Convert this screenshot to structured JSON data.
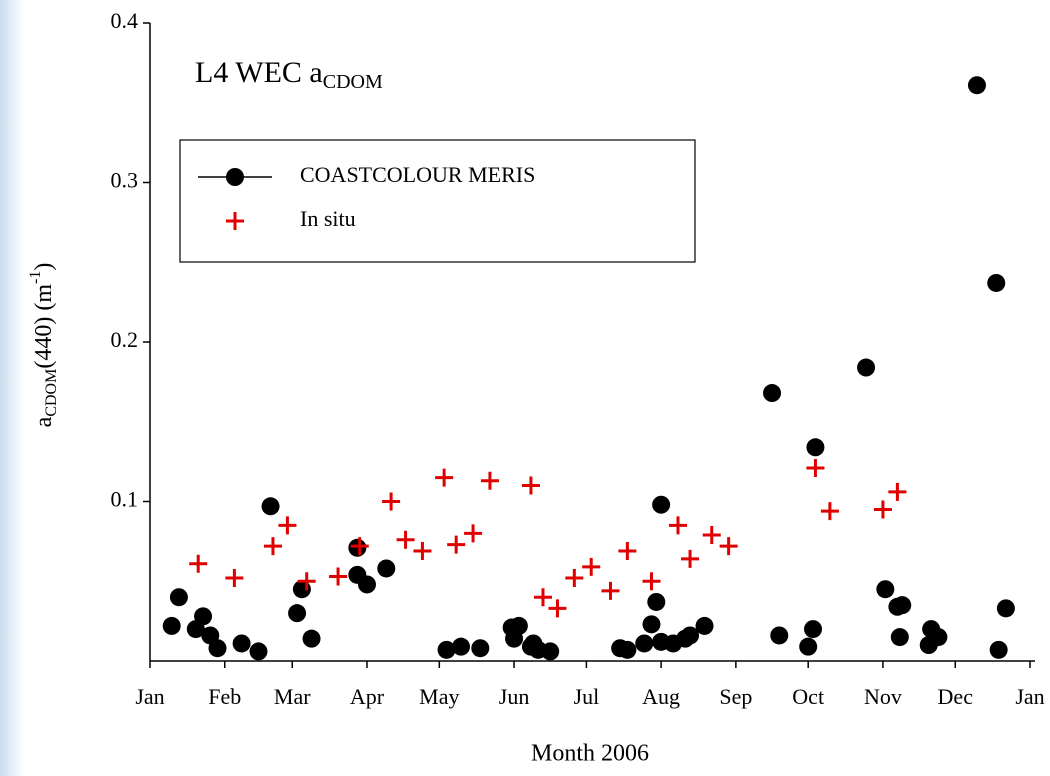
{
  "chart_data": {
    "type": "scatter",
    "title": [
      "L4 WEC a",
      "CDOM"
    ],
    "x_label": "Month 2006",
    "y_label": [
      "a",
      "CDOM",
      "(440) (m",
      "-1",
      ")"
    ],
    "xlim": [
      0,
      365
    ],
    "xticks": [
      {
        "value": 0,
        "label": "Jan"
      },
      {
        "value": 31,
        "label": "Feb"
      },
      {
        "value": 59,
        "label": "Mar"
      },
      {
        "value": 90,
        "label": "Apr"
      },
      {
        "value": 120,
        "label": "May"
      },
      {
        "value": 151,
        "label": "Jun"
      },
      {
        "value": 181,
        "label": "Jul"
      },
      {
        "value": 212,
        "label": "Aug"
      },
      {
        "value": 243,
        "label": "Sep"
      },
      {
        "value": 273,
        "label": "Oct"
      },
      {
        "value": 304,
        "label": "Nov"
      },
      {
        "value": 334,
        "label": "Dec"
      },
      {
        "value": 365,
        "label": "Jan"
      }
    ],
    "ylim": [
      0,
      0.4
    ],
    "yticks": [
      0.1,
      0.2,
      0.3,
      0.4
    ],
    "legend": "upper left",
    "series": [
      {
        "name": "COASTCOLOUR MERIS",
        "marker": "circle",
        "color": "#000000",
        "x": [
          9,
          12,
          19,
          22,
          25,
          28,
          38,
          45,
          50,
          61,
          63,
          67,
          86,
          86,
          90,
          98,
          123,
          129,
          137,
          150,
          153,
          151,
          158,
          159,
          161,
          166,
          195,
          198,
          205,
          208,
          210,
          212,
          212,
          217,
          222,
          224,
          230,
          258,
          261,
          273,
          275,
          276,
          297,
          305,
          310,
          312,
          311,
          323,
          324,
          327,
          343,
          351,
          352,
          355
        ],
        "values": [
          0.022,
          0.04,
          0.02,
          0.028,
          0.016,
          0.008,
          0.011,
          0.006,
          0.097,
          0.03,
          0.045,
          0.014,
          0.071,
          0.054,
          0.048,
          0.058,
          0.007,
          0.009,
          0.008,
          0.021,
          0.022,
          0.014,
          0.009,
          0.011,
          0.007,
          0.006,
          0.008,
          0.007,
          0.011,
          0.023,
          0.037,
          0.098,
          0.012,
          0.011,
          0.014,
          0.016,
          0.022,
          0.168,
          0.016,
          0.009,
          0.02,
          0.134,
          0.184,
          0.045,
          0.034,
          0.035,
          0.015,
          0.01,
          0.02,
          0.015,
          0.361,
          0.237,
          0.007,
          0.033
        ]
      },
      {
        "name": "In situ",
        "marker": "plus",
        "color": "#e00000",
        "x": [
          20,
          35,
          51,
          57,
          65,
          78,
          87,
          100,
          106,
          113,
          122,
          127,
          134,
          141,
          158,
          163,
          169,
          176,
          183,
          191,
          198,
          208,
          219,
          224,
          233,
          240,
          276,
          282,
          304,
          310
        ],
        "values": [
          0.061,
          0.052,
          0.072,
          0.085,
          0.05,
          0.053,
          0.072,
          0.1,
          0.076,
          0.069,
          0.115,
          0.073,
          0.08,
          0.113,
          0.11,
          0.04,
          0.033,
          0.052,
          0.059,
          0.044,
          0.069,
          0.05,
          0.085,
          0.064,
          0.079,
          0.072,
          0.121,
          0.094,
          0.095,
          0.106
        ]
      }
    ]
  }
}
